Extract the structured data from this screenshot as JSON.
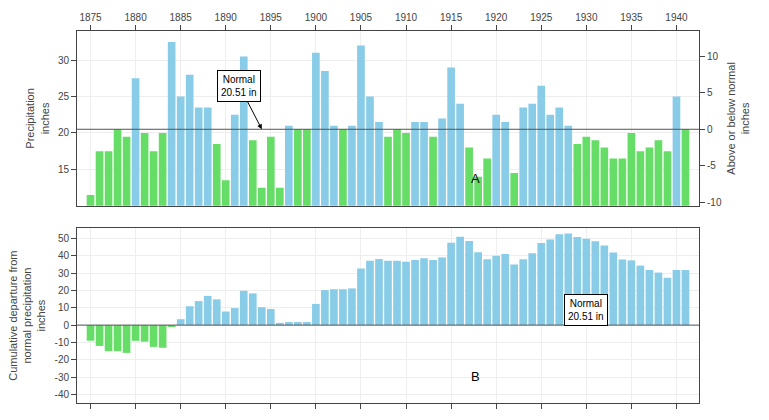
{
  "chart_data": [
    {
      "type": "bar",
      "x": [
        1875,
        1876,
        1877,
        1878,
        1879,
        1880,
        1881,
        1882,
        1883,
        1884,
        1885,
        1886,
        1887,
        1888,
        1889,
        1890,
        1891,
        1892,
        1893,
        1894,
        1895,
        1896,
        1897,
        1898,
        1899,
        1900,
        1901,
        1902,
        1903,
        1904,
        1905,
        1906,
        1907,
        1908,
        1909,
        1910,
        1911,
        1912,
        1913,
        1914,
        1915,
        1916,
        1917,
        1918,
        1919,
        1920,
        1921,
        1922,
        1923,
        1924,
        1925,
        1926,
        1927,
        1928,
        1929,
        1930,
        1931,
        1932,
        1933,
        1934,
        1935,
        1936,
        1937,
        1938,
        1939,
        1940,
        1941
      ],
      "values": [
        11.5,
        17.5,
        17.5,
        20.5,
        19.5,
        27.5,
        20.0,
        17.5,
        20.0,
        32.5,
        25.0,
        28.0,
        23.5,
        23.5,
        18.5,
        13.5,
        22.5,
        30.5,
        19.0,
        12.5,
        19.5,
        12.5,
        21.0,
        20.5,
        20.5,
        31.0,
        28.5,
        21.0,
        20.5,
        21.0,
        32.0,
        25.0,
        21.5,
        19.5,
        20.5,
        20.0,
        21.5,
        21.5,
        19.5,
        22.0,
        29.0,
        24.0,
        18.0,
        14.0,
        16.5,
        22.5,
        21.5,
        14.5,
        23.5,
        24.0,
        26.5,
        22.5,
        23.5,
        21.0,
        18.5,
        19.5,
        19.0,
        18.0,
        16.5,
        16.5,
        20.0,
        17.5,
        18.0,
        19.0,
        17.5,
        25.0,
        20.5
      ],
      "colors": [
        "#66DD66",
        "#66DD66",
        "#66DD66",
        "#66DD66",
        "#66DD66",
        "#88CCE8",
        "#66DD66",
        "#66DD66",
        "#66DD66",
        "#88CCE8",
        "#88CCE8",
        "#88CCE8",
        "#88CCE8",
        "#88CCE8",
        "#66DD66",
        "#66DD66",
        "#88CCE8",
        "#88CCE8",
        "#66DD66",
        "#66DD66",
        "#66DD66",
        "#66DD66",
        "#88CCE8",
        "#66DD66",
        "#66DD66",
        "#88CCE8",
        "#88CCE8",
        "#88CCE8",
        "#66DD66",
        "#88CCE8",
        "#88CCE8",
        "#88CCE8",
        "#88CCE8",
        "#66DD66",
        "#66DD66",
        "#66DD66",
        "#88CCE8",
        "#88CCE8",
        "#66DD66",
        "#88CCE8",
        "#88CCE8",
        "#88CCE8",
        "#66DD66",
        "#66DD66",
        "#66DD66",
        "#88CCE8",
        "#88CCE8",
        "#66DD66",
        "#88CCE8",
        "#88CCE8",
        "#88CCE8",
        "#88CCE8",
        "#88CCE8",
        "#88CCE8",
        "#66DD66",
        "#66DD66",
        "#66DD66",
        "#66DD66",
        "#66DD66",
        "#66DD66",
        "#66DD66",
        "#66DD66",
        "#66DD66",
        "#66DD66",
        "#66DD66",
        "#88CCE8",
        "#66DD66"
      ],
      "xlim": [
        1873.5,
        1942.5
      ],
      "xticks": [
        1875,
        1880,
        1885,
        1890,
        1895,
        1900,
        1905,
        1910,
        1915,
        1920,
        1925,
        1930,
        1935,
        1940
      ],
      "ylim": [
        10.0,
        34.0
      ],
      "yticks": [
        15,
        20,
        25,
        30
      ],
      "ylabel": "Precipitation\ninches",
      "y2lim": [
        -10.51,
        13.49
      ],
      "y2ticks": [
        -10,
        -5,
        0,
        5,
        10
      ],
      "y2label": "Above or below normal\ninches",
      "grid": true,
      "reference_line": 20.51,
      "annotations": [
        {
          "text": "Normal\n20.51 in",
          "x": 1894,
          "y": 20.51,
          "text_x": 1891.5,
          "text_y": 26.5
        }
      ],
      "panel_label": "A"
    },
    {
      "type": "bar",
      "x": [
        1875,
        1876,
        1877,
        1878,
        1879,
        1880,
        1881,
        1882,
        1883,
        1884,
        1885,
        1886,
        1887,
        1888,
        1889,
        1890,
        1891,
        1892,
        1893,
        1894,
        1895,
        1896,
        1897,
        1898,
        1899,
        1900,
        1901,
        1902,
        1903,
        1904,
        1905,
        1906,
        1907,
        1908,
        1909,
        1910,
        1911,
        1912,
        1913,
        1914,
        1915,
        1916,
        1917,
        1918,
        1919,
        1920,
        1921,
        1922,
        1923,
        1924,
        1925,
        1926,
        1927,
        1928,
        1929,
        1930,
        1931,
        1932,
        1933,
        1934,
        1935,
        1936,
        1937,
        1938,
        1939,
        1940,
        1941
      ],
      "values": [
        -9.01,
        -12.02,
        -15.03,
        -15.04,
        -16.05,
        -9.06,
        -9.57,
        -12.58,
        -13.09,
        -1.1,
        3.39,
        10.88,
        13.87,
        16.86,
        14.85,
        7.84,
        9.83,
        19.82,
        18.31,
        10.3,
        9.29,
        1.28,
        1.77,
        1.76,
        1.75,
        12.24,
        20.23,
        20.72,
        20.71,
        21.2,
        32.69,
        37.18,
        38.17,
        37.16,
        37.15,
        36.64,
        37.63,
        38.62,
        37.61,
        39.1,
        47.59,
        51.08,
        48.57,
        42.06,
        38.05,
        40.04,
        41.03,
        35.02,
        38.01,
        41.5,
        47.49,
        49.48,
        52.47,
        52.96,
        50.95,
        49.94,
        48.43,
        45.92,
        41.91,
        37.9,
        37.39,
        34.38,
        31.87,
        30.36,
        27.35,
        31.84,
        31.83
      ],
      "colors": [
        "#66DD66",
        "#66DD66",
        "#66DD66",
        "#66DD66",
        "#66DD66",
        "#66DD66",
        "#66DD66",
        "#66DD66",
        "#66DD66",
        "#66DD66",
        "#88CCE8",
        "#88CCE8",
        "#88CCE8",
        "#88CCE8",
        "#88CCE8",
        "#88CCE8",
        "#88CCE8",
        "#88CCE8",
        "#88CCE8",
        "#88CCE8",
        "#88CCE8",
        "#88CCE8",
        "#88CCE8",
        "#88CCE8",
        "#88CCE8",
        "#88CCE8",
        "#88CCE8",
        "#88CCE8",
        "#88CCE8",
        "#88CCE8",
        "#88CCE8",
        "#88CCE8",
        "#88CCE8",
        "#88CCE8",
        "#88CCE8",
        "#88CCE8",
        "#88CCE8",
        "#88CCE8",
        "#88CCE8",
        "#88CCE8",
        "#88CCE8",
        "#88CCE8",
        "#88CCE8",
        "#88CCE8",
        "#88CCE8",
        "#88CCE8",
        "#88CCE8",
        "#88CCE8",
        "#88CCE8",
        "#88CCE8",
        "#88CCE8",
        "#88CCE8",
        "#88CCE8",
        "#88CCE8",
        "#88CCE8",
        "#88CCE8",
        "#88CCE8",
        "#88CCE8",
        "#88CCE8",
        "#88CCE8",
        "#88CCE8",
        "#88CCE8",
        "#88CCE8",
        "#88CCE8",
        "#88CCE8",
        "#88CCE8",
        "#88CCE8"
      ],
      "xlim": [
        1873.5,
        1942.5
      ],
      "xticks": [
        1875,
        1880,
        1885,
        1890,
        1895,
        1900,
        1905,
        1910,
        1915,
        1920,
        1925,
        1930,
        1935,
        1940
      ],
      "ylim": [
        -45,
        56
      ],
      "yticks": [
        -40,
        -30,
        -20,
        -10,
        0,
        10,
        20,
        30,
        40,
        50
      ],
      "ylabel": "Cumulative departure from\nnormal precipitation\ninches",
      "grid": true,
      "tick_labels": "y",
      "reference_line": 0,
      "annotations": [
        {
          "text": "Normal\n20.51 in",
          "x": 1930,
          "y": 0,
          "text_x": 1930,
          "text_y": 9
        }
      ],
      "panel_label": "B"
    }
  ]
}
